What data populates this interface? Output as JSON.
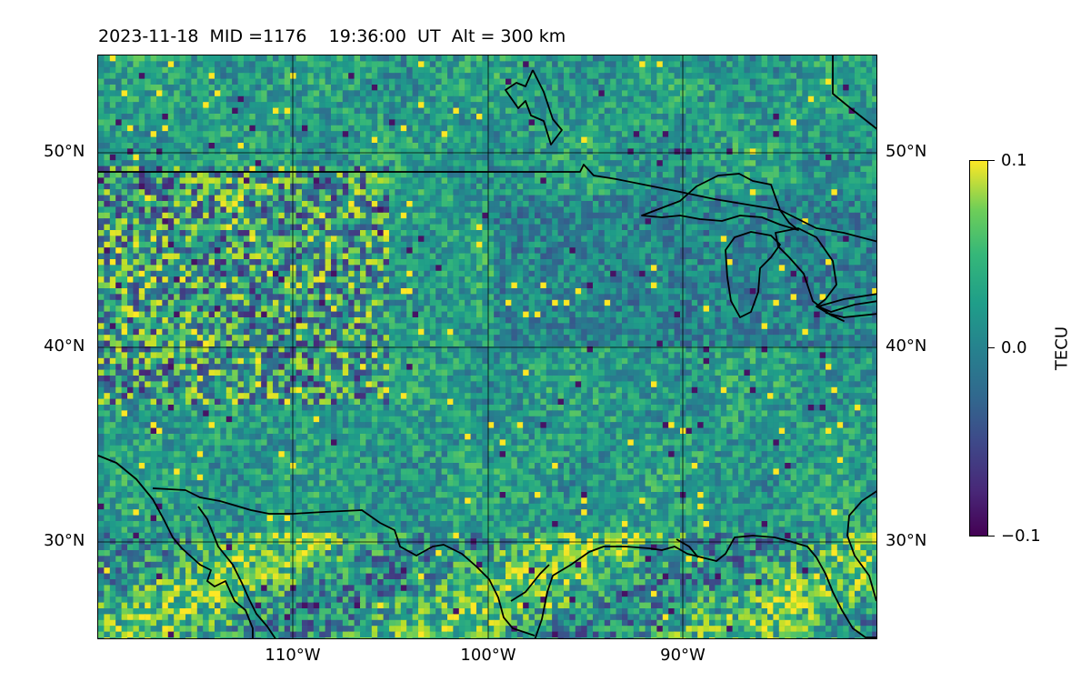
{
  "header": {
    "date": "2023-11-18",
    "mid": "MID =1176",
    "time": "19:36:00  UT",
    "altitude": "Alt = 300 km"
  },
  "map": {
    "lat_ticks": [
      "50°N",
      "40°N",
      "30°N"
    ],
    "lon_ticks": [
      "110°W",
      "100°W",
      "90°W"
    ],
    "lon_range": [
      -120,
      -80
    ],
    "lat_range": [
      25,
      55
    ],
    "projection": "PlateCarree",
    "gridlines": true,
    "features": [
      "coastlines",
      "US-Canada border",
      "US-Mexico border",
      "Great Lakes"
    ]
  },
  "colorbar": {
    "label": "TECU",
    "ticks": [
      "0.1",
      "0.0",
      "−0.1"
    ],
    "vmin": -0.1,
    "vmax": 0.1,
    "colormap": "viridis"
  }
}
